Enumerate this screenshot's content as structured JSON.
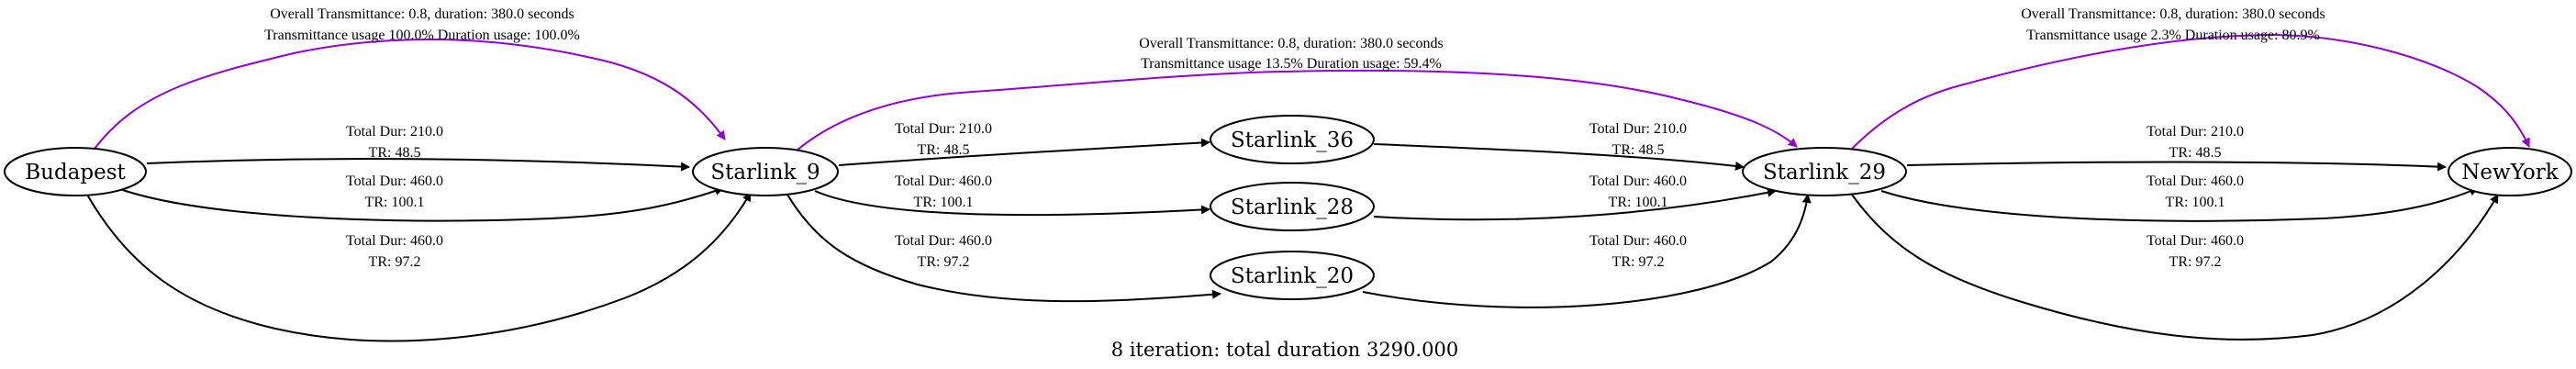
{
  "colors": {
    "edge": "#000000",
    "summary_edge": "#9400d3",
    "background": "#ffffff"
  },
  "nodes": {
    "budapest": "Budapest",
    "starlink_9": "Starlink_9",
    "starlink_36": "Starlink_36",
    "starlink_28": "Starlink_28",
    "starlink_20": "Starlink_20",
    "starlink_29": "Starlink_29",
    "newyork": "NewYork"
  },
  "edges": {
    "bud_s9_a": {
      "dur": "Total Dur: 210.0",
      "tr": "TR: 48.5"
    },
    "bud_s9_b": {
      "dur": "Total Dur: 460.0",
      "tr": "TR: 100.1"
    },
    "bud_s9_c": {
      "dur": "Total Dur: 460.0",
      "tr": "TR: 97.2"
    },
    "s9_s36": {
      "dur": "Total Dur: 210.0",
      "tr": "TR: 48.5"
    },
    "s9_s28": {
      "dur": "Total Dur: 460.0",
      "tr": "TR: 100.1"
    },
    "s9_s20": {
      "dur": "Total Dur: 460.0",
      "tr": "TR: 97.2"
    },
    "s36_s29": {
      "dur": "Total Dur: 210.0",
      "tr": "TR: 48.5"
    },
    "s28_s29": {
      "dur": "Total Dur: 460.0",
      "tr": "TR: 100.1"
    },
    "s20_s29": {
      "dur": "Total Dur: 460.0",
      "tr": "TR: 97.2"
    },
    "s29_ny_a": {
      "dur": "Total Dur: 210.0",
      "tr": "TR: 48.5"
    },
    "s29_ny_b": {
      "dur": "Total Dur: 460.0",
      "tr": "TR: 100.1"
    },
    "s29_ny_c": {
      "dur": "Total Dur: 460.0",
      "tr": "TR: 97.2"
    }
  },
  "summaries": {
    "bud_s9": {
      "line1": "Overall Transmittance: 0.8, duration: 380.0 seconds",
      "line2": "Transmittance usage 100.0% Duration usage: 100.0%"
    },
    "s9_s29": {
      "line1": "Overall Transmittance: 0.8, duration: 380.0 seconds",
      "line2": "Transmittance usage 13.5% Duration usage: 59.4%"
    },
    "s29_ny": {
      "line1": "Overall Transmittance: 0.8, duration: 380.0 seconds",
      "line2": "Transmittance usage 2.3% Duration usage: 80.9%"
    }
  },
  "caption": "8 iteration: total duration 3290.000"
}
